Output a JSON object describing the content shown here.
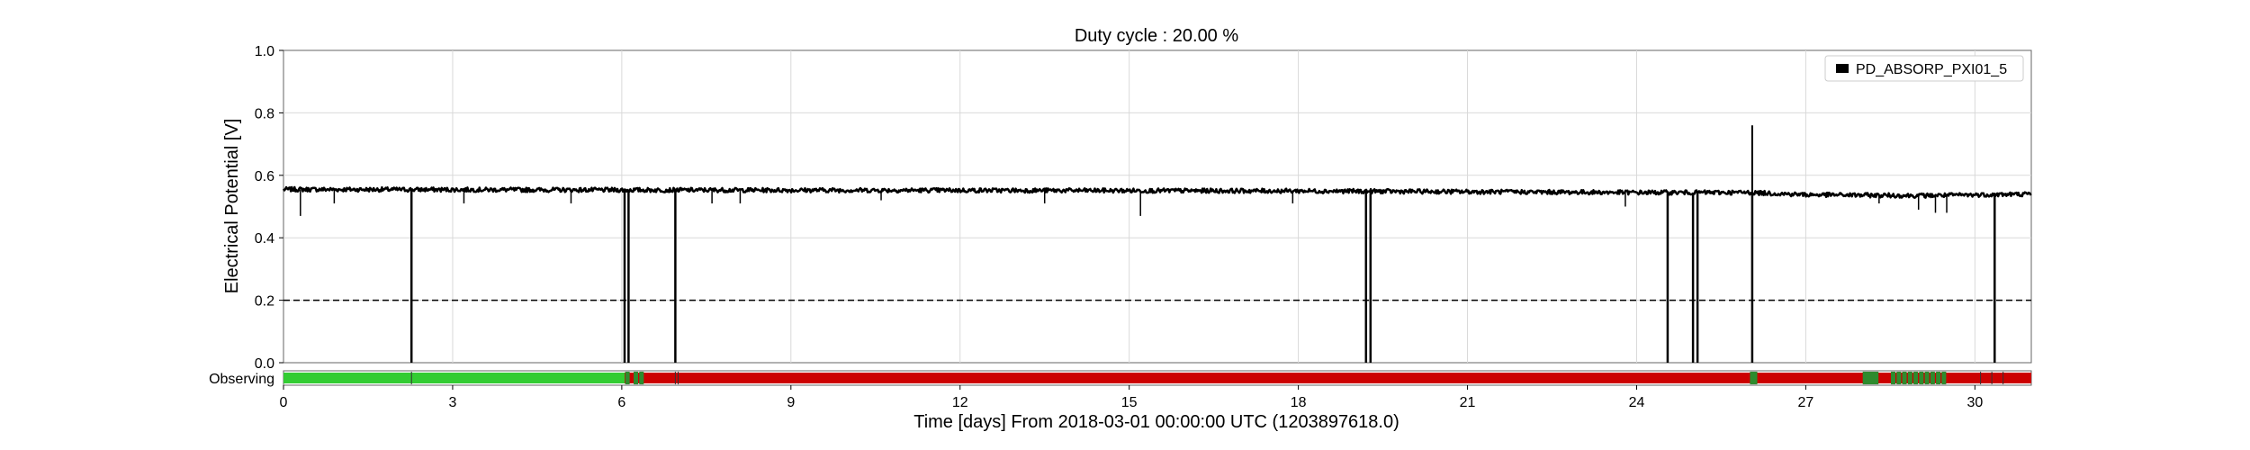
{
  "chart_data": {
    "type": "line",
    "title": "Duty cycle : 20.00 %",
    "xlabel": "Time [days] From 2018-03-01 00:00:00 UTC (1203897618.0)",
    "ylabel": "Electrical Potential [V]",
    "xlim": [
      0,
      31
    ],
    "ylim": [
      0.0,
      1.0
    ],
    "xticks": [
      0,
      3,
      6,
      9,
      12,
      15,
      18,
      21,
      24,
      27,
      30
    ],
    "xtick_labels": [
      "0",
      "3",
      "6",
      "9",
      "12",
      "15",
      "18",
      "21",
      "24",
      "27",
      "30"
    ],
    "yticks": [
      0.0,
      0.2,
      0.4,
      0.6,
      0.8,
      1.0
    ],
    "ytick_labels": [
      "0.0",
      "0.2",
      "0.4",
      "0.6",
      "0.8",
      "1.0"
    ],
    "grid": true,
    "legend": {
      "location": "top-right",
      "entries": [
        "PD_ABSORP_PXI01_5"
      ]
    },
    "series": [
      {
        "name": "PD_ABSORP_PXI01_5",
        "color": "#000000",
        "baseline": [
          [
            0,
            0.555
          ],
          [
            6,
            0.553
          ],
          [
            12,
            0.552
          ],
          [
            18,
            0.55
          ],
          [
            24,
            0.545
          ],
          [
            26,
            0.545
          ],
          [
            27,
            0.538
          ],
          [
            29,
            0.535
          ],
          [
            31,
            0.54
          ]
        ],
        "dropouts_to_zero": [
          2.27,
          6.05,
          6.12,
          6.95,
          19.2,
          19.28,
          24.55,
          25.0,
          25.08,
          26.05,
          30.35
        ],
        "spikes": [
          [
            26.05,
            0.76
          ]
        ],
        "small_dips": [
          [
            0.3,
            0.47
          ],
          [
            0.9,
            0.51
          ],
          [
            3.2,
            0.51
          ],
          [
            5.1,
            0.51
          ],
          [
            7.6,
            0.51
          ],
          [
            8.1,
            0.51
          ],
          [
            10.6,
            0.52
          ],
          [
            13.5,
            0.51
          ],
          [
            15.2,
            0.47
          ],
          [
            17.9,
            0.51
          ],
          [
            23.8,
            0.5
          ],
          [
            28.3,
            0.51
          ],
          [
            29.0,
            0.49
          ],
          [
            29.3,
            0.48
          ],
          [
            29.5,
            0.48
          ]
        ]
      }
    ],
    "threshold": {
      "value": 0.2,
      "style": "dashed",
      "color": "#000000"
    },
    "segment_bar": {
      "label": "Observing",
      "segments": [
        {
          "start": 0,
          "end": 6.05,
          "state": "on",
          "color": "#33cc33"
        },
        {
          "start": 6.05,
          "end": 31,
          "state": "off",
          "color": "#cc0000"
        }
      ],
      "on_marks": [
        6.1,
        6.25,
        6.35,
        26.05,
        26.1,
        28.05,
        28.1,
        28.15,
        28.2,
        28.25,
        28.55,
        28.65,
        28.75,
        28.85,
        28.95,
        29.05,
        29.15,
        29.25,
        29.35,
        29.45
      ],
      "tick_marks": [
        2.27,
        6.95,
        7.0,
        30.1,
        30.3,
        30.5
      ]
    }
  }
}
